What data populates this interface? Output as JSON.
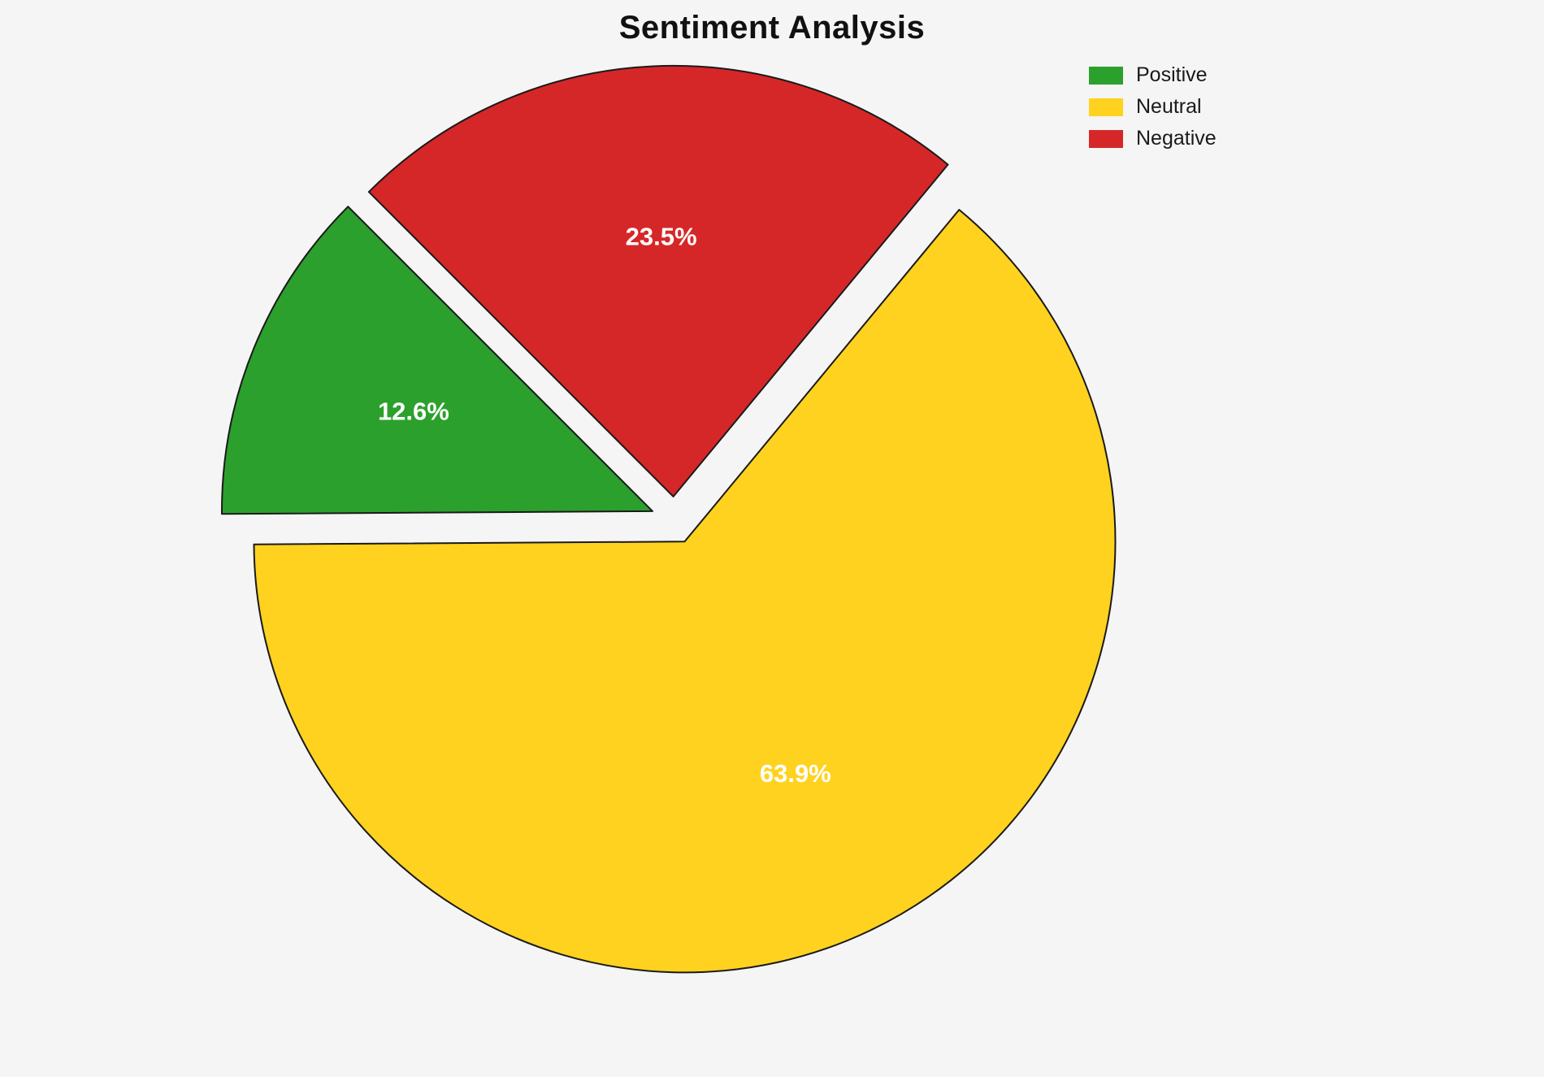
{
  "title": "Sentiment Analysis",
  "chart_data": {
    "type": "pie",
    "title": "Sentiment Analysis",
    "labels": [
      "Positive",
      "Neutral",
      "Negative"
    ],
    "values": [
      12.6,
      63.9,
      23.5
    ],
    "pct_labels": [
      "12.6%",
      "63.9%",
      "23.5%"
    ],
    "colors": [
      "#2CA02C",
      "#FFD21F",
      "#D62728"
    ],
    "start_angle": 135,
    "counterclockwise": true,
    "explode": 0.055,
    "pct_distance": 0.6,
    "pct_label_color": "#FFFFFF",
    "edge_color": "#1a1a1a",
    "edge_width": 2,
    "background": "#F5F5F5",
    "legend": {
      "position": "upper right",
      "entries": [
        "Positive",
        "Neutral",
        "Negative"
      ]
    }
  }
}
